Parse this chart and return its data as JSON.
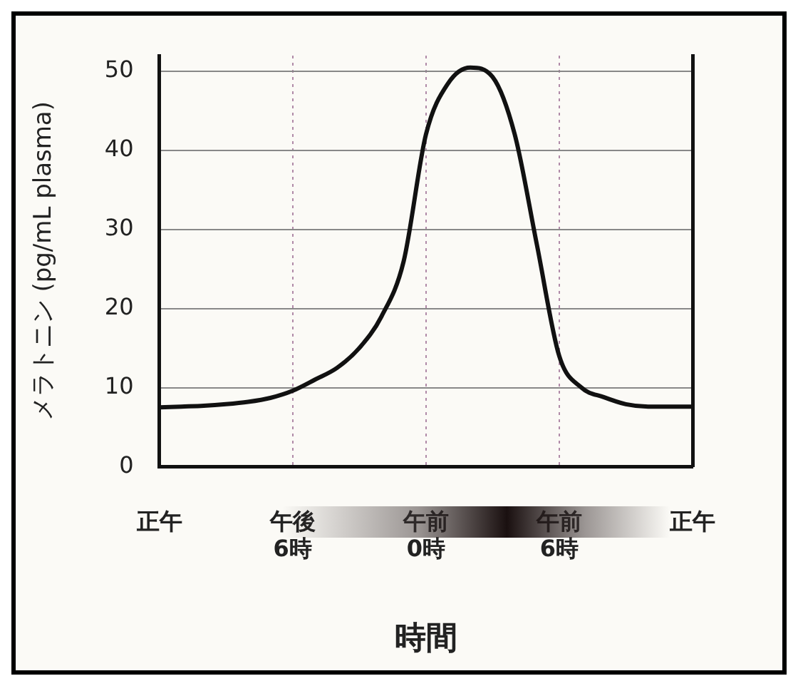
{
  "chart_data": {
    "type": "line",
    "xlabel": "時間",
    "ylabel": "メラトニン (pg/mL plasma)",
    "categories": [
      "正午",
      null,
      null,
      null,
      null,
      null,
      "午後\n6時",
      null,
      null,
      null,
      null,
      null,
      "午前\n0時",
      null,
      null,
      null,
      null,
      null,
      "午前\n6時",
      null,
      null,
      null,
      null,
      null,
      "正午"
    ],
    "series": [
      {
        "color": "#111111",
        "values": [
          7.5,
          7.6,
          7.7,
          7.9,
          8.2,
          8.7,
          9.6,
          11,
          12.5,
          15,
          19,
          26,
          42,
          48.5,
          50.5,
          49.3,
          42,
          28,
          14,
          10,
          8.8,
          7.9,
          7.6,
          7.6,
          7.6
        ]
      }
    ],
    "ylim": [
      0,
      52
    ],
    "yticks": [
      0,
      10,
      20,
      30,
      40,
      50
    ],
    "grid": true,
    "legend": false,
    "marker": "none",
    "line_style": "solid"
  }
}
